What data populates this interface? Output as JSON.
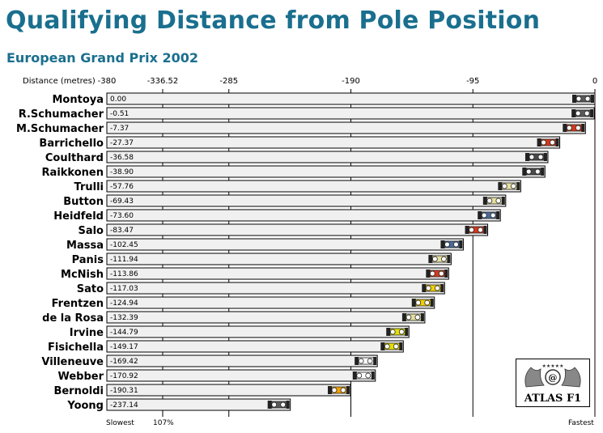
{
  "title": "Qualifying Distance from Pole Position",
  "subtitle": "European Grand Prix 2002",
  "logo_text": "ATLAS F1",
  "colors": {
    "title": "#1a6f8e",
    "bar_fill": "#f0f0f0",
    "bar_stroke": "#000000"
  },
  "chart_data": {
    "type": "bar",
    "orientation": "horizontal",
    "xlabel": "Distance (metres)",
    "xlim": [
      -380,
      0
    ],
    "x_ticks": [
      "-380",
      "-336.52",
      "-285",
      "-190",
      "-95",
      "0"
    ],
    "footer_left": "Slowest",
    "footer_mid": "107%",
    "footer_right": "Fastest",
    "categories": [
      "Montoya",
      "R.Schumacher",
      "M.Schumacher",
      "Barrichello",
      "Coulthard",
      "Raikkonen",
      "Trulli",
      "Button",
      "Heidfeld",
      "Salo",
      "Massa",
      "Panis",
      "McNish",
      "Sato",
      "Frentzen",
      "de la Rosa",
      "Irvine",
      "Fisichella",
      "Villeneuve",
      "Webber",
      "Bernoldi",
      "Yoong"
    ],
    "values": [
      0.0,
      -0.51,
      -7.37,
      -27.37,
      -36.58,
      -38.9,
      -57.76,
      -69.43,
      -73.6,
      -83.47,
      -102.45,
      -111.94,
      -113.86,
      -117.03,
      -124.94,
      -132.39,
      -144.79,
      -149.17,
      -169.42,
      -170.92,
      -190.31,
      -237.14
    ],
    "value_labels": [
      "0.00",
      "-0.51",
      "-7.37",
      "-27.37",
      "-36.58",
      "-38.90",
      "-57.76",
      "-69.43",
      "-73.60",
      "-83.47",
      "-102.45",
      "-111.94",
      "-113.86",
      "-117.03",
      "-124.94",
      "-132.39",
      "-144.79",
      "-149.17",
      "-169.42",
      "-170.92",
      "-190.31",
      "-237.14"
    ],
    "car_colors": [
      "#5a5a5a",
      "#5a5a5a",
      "#d43a1a",
      "#d43a1a",
      "#4a4a4a",
      "#4a4a4a",
      "#e6e0a0",
      "#e6e0a0",
      "#4a6a9a",
      "#d43a1a",
      "#4a6a9a",
      "#e6e0a0",
      "#d43a1a",
      "#f0d000",
      "#f0d000",
      "#e6e0a0",
      "#e6e000",
      "#e6e000",
      "#ffffff",
      "#ffffff",
      "#f0a000",
      "#5a5a5a"
    ]
  }
}
